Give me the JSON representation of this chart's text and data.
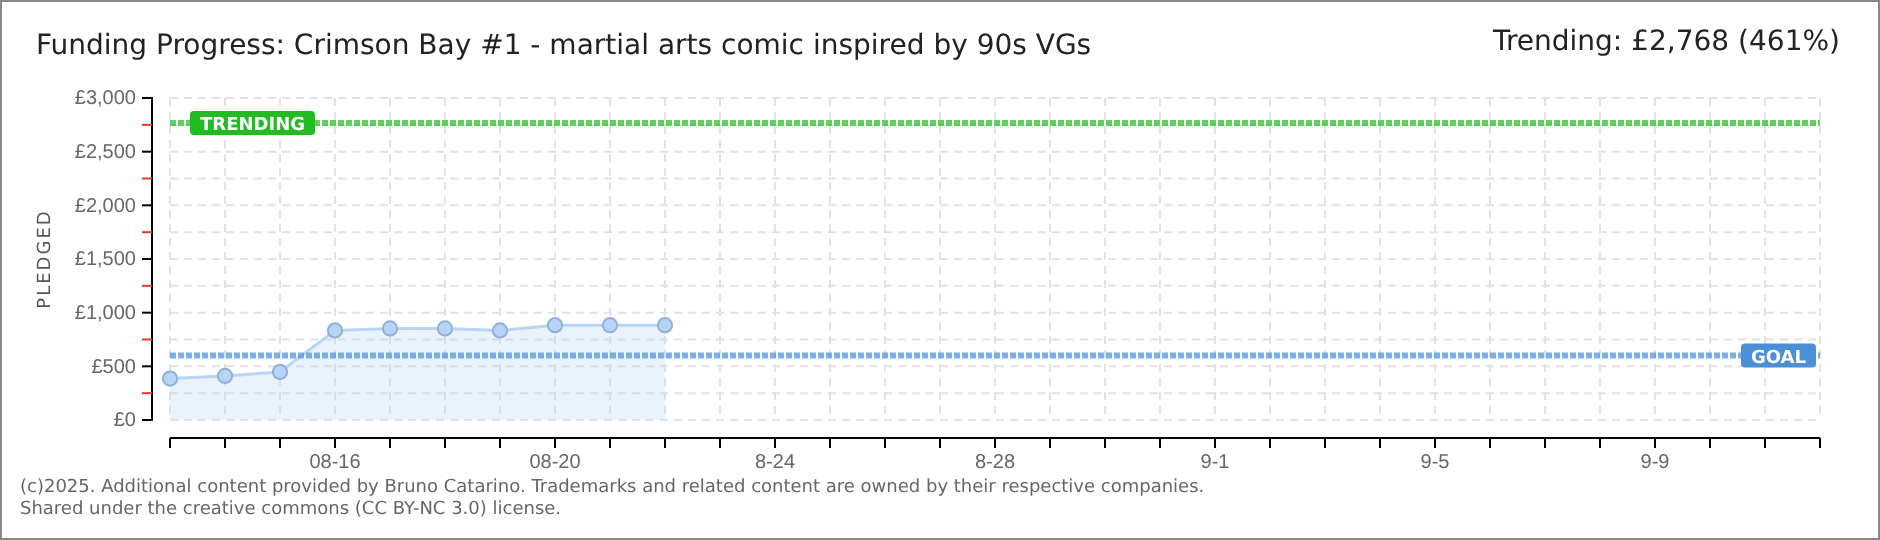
{
  "chart_data": {
    "type": "area",
    "title": "Funding Progress: Crimson Bay #1 - martial arts comic inspired by 90s VGs",
    "subtitle": "Trending: £2,768 (461%)",
    "ylabel": "PLEDGED",
    "x": [
      "--08-13",
      "--08-14",
      "--08-15",
      "--08-16",
      "--08-17",
      "--08-18",
      "--08-19",
      "--08-20",
      "--08-21",
      "--08-22"
    ],
    "series": [
      {
        "color": "#b8d4f4",
        "values": [
          386,
          411,
          448,
          834,
          853,
          853,
          834,
          883,
          883,
          883
        ]
      }
    ],
    "xlim": [
      "--08-13",
      "--09-12"
    ],
    "xticks": [
      {
        "value": "--08-13",
        "label": null
      },
      {
        "value": "--08-14",
        "label": null
      },
      {
        "value": "--08-15",
        "label": null
      },
      {
        "value": "--08-16",
        "label": "08-16"
      },
      {
        "value": "--08-17",
        "label": null
      },
      {
        "value": "--08-18",
        "label": null
      },
      {
        "value": "--08-19",
        "label": null
      },
      {
        "value": "--08-20",
        "label": "08-20"
      },
      {
        "value": "--08-21",
        "label": null
      },
      {
        "value": "--08-22",
        "label": null
      },
      {
        "value": "--08-23",
        "label": null
      },
      {
        "value": "--08-24",
        "label": "8-24"
      },
      {
        "value": "--08-25",
        "label": null
      },
      {
        "value": "--08-26",
        "label": null
      },
      {
        "value": "--08-27",
        "label": null
      },
      {
        "value": "--08-28",
        "label": "8-28"
      },
      {
        "value": "--08-29",
        "label": null
      },
      {
        "value": "--08-30",
        "label": null
      },
      {
        "value": "--08-31",
        "label": null
      },
      {
        "value": "--09-01",
        "label": "9-1"
      },
      {
        "value": "--09-02",
        "label": null
      },
      {
        "value": "--09-03",
        "label": null
      },
      {
        "value": "--09-04",
        "label": null
      },
      {
        "value": "--09-05",
        "label": "9-5"
      },
      {
        "value": "--09-06",
        "label": null
      },
      {
        "value": "--09-07",
        "label": null
      },
      {
        "value": "--09-08",
        "label": null
      },
      {
        "value": "--09-09",
        "label": "9-9"
      },
      {
        "value": "--09-10",
        "label": null
      },
      {
        "value": "--09-11",
        "label": null
      },
      {
        "value": "--09-12",
        "label": null
      }
    ],
    "ylim": [
      0,
      3000
    ],
    "yticks": [
      {
        "value": 0,
        "label": "£0"
      },
      {
        "value": 250,
        "label": null
      },
      {
        "value": 500,
        "label": "£500"
      },
      {
        "value": 750,
        "label": null
      },
      {
        "value": 1000,
        "label": "£1,000"
      },
      {
        "value": 1250,
        "label": null
      },
      {
        "value": 1500,
        "label": "£1,500"
      },
      {
        "value": 1750,
        "label": null
      },
      {
        "value": 2000,
        "label": "£2,000"
      },
      {
        "value": 2250,
        "label": null
      },
      {
        "value": 2500,
        "label": "£2,500"
      },
      {
        "value": 2750,
        "label": null
      },
      {
        "value": 3000,
        "label": "£3,000"
      }
    ],
    "grid": true,
    "marker": "circle",
    "ref_lines": [
      {
        "axis": "y",
        "value": 2768,
        "label": "TRENDING",
        "color": "#22bb22",
        "line_style": "dotted"
      },
      {
        "axis": "y",
        "value": 600,
        "label": "GOAL",
        "color": "#4a90d9",
        "line_style": "dotted"
      }
    ],
    "annotations": [
      "(c)2025. Additional content provided by Bruno Catarino. Trademarks and related content are owned by their respective companies.",
      "Shared under the creative commons (CC BY-NC 3.0) license."
    ]
  }
}
